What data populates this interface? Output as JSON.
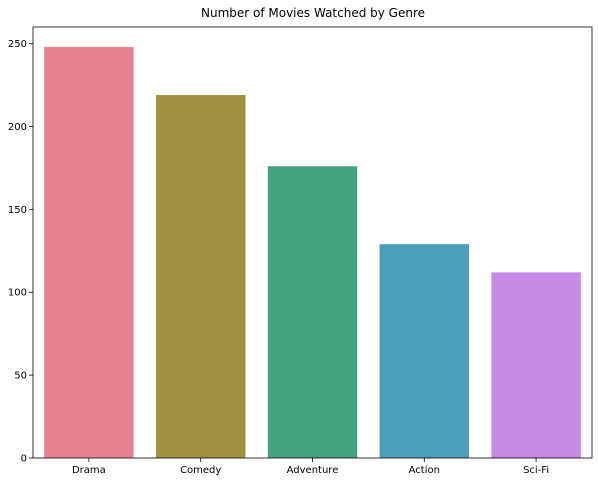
{
  "chart_data": {
    "type": "bar",
    "title": "Number of Movies Watched by Genre",
    "xlabel": "",
    "ylabel": "",
    "categories": [
      "Drama",
      "Comedy",
      "Adventure",
      "Action",
      "Sci-Fi"
    ],
    "values": [
      248,
      219,
      176,
      129,
      112
    ],
    "colors": [
      "#e88193",
      "#a09240",
      "#43a37c",
      "#499fb7",
      "#c78ae6"
    ],
    "ylim": [
      0,
      260
    ],
    "yticks": [
      0,
      50,
      100,
      150,
      200,
      250
    ],
    "grid": false,
    "legend": "none"
  }
}
